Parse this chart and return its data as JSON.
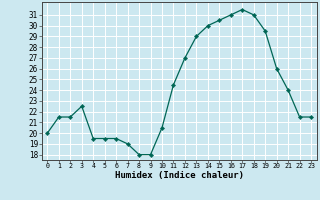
{
  "x": [
    0,
    1,
    2,
    3,
    4,
    5,
    6,
    7,
    8,
    9,
    10,
    11,
    12,
    13,
    14,
    15,
    16,
    17,
    18,
    19,
    20,
    21,
    22,
    23
  ],
  "y": [
    20.0,
    21.5,
    21.5,
    22.5,
    19.5,
    19.5,
    19.5,
    19.0,
    18.0,
    18.0,
    20.5,
    24.5,
    27.0,
    29.0,
    30.0,
    30.5,
    31.0,
    31.5,
    31.0,
    29.5,
    26.0,
    24.0,
    21.5,
    21.5
  ],
  "xlabel": "Humidex (Indice chaleur)",
  "bg_color": "#cce8f0",
  "grid_color": "#ffffff",
  "line_color": "#006655",
  "marker_color": "#006655",
  "ylim": [
    17.5,
    32.2
  ],
  "xlim": [
    -0.5,
    23.5
  ],
  "yticks": [
    18,
    19,
    20,
    21,
    22,
    23,
    24,
    25,
    26,
    27,
    28,
    29,
    30,
    31
  ],
  "xticks": [
    0,
    1,
    2,
    3,
    4,
    5,
    6,
    7,
    8,
    9,
    10,
    11,
    12,
    13,
    14,
    15,
    16,
    17,
    18,
    19,
    20,
    21,
    22,
    23
  ],
  "ytick_fontsize": 5.5,
  "xtick_fontsize": 4.8,
  "xlabel_fontsize": 6.5
}
